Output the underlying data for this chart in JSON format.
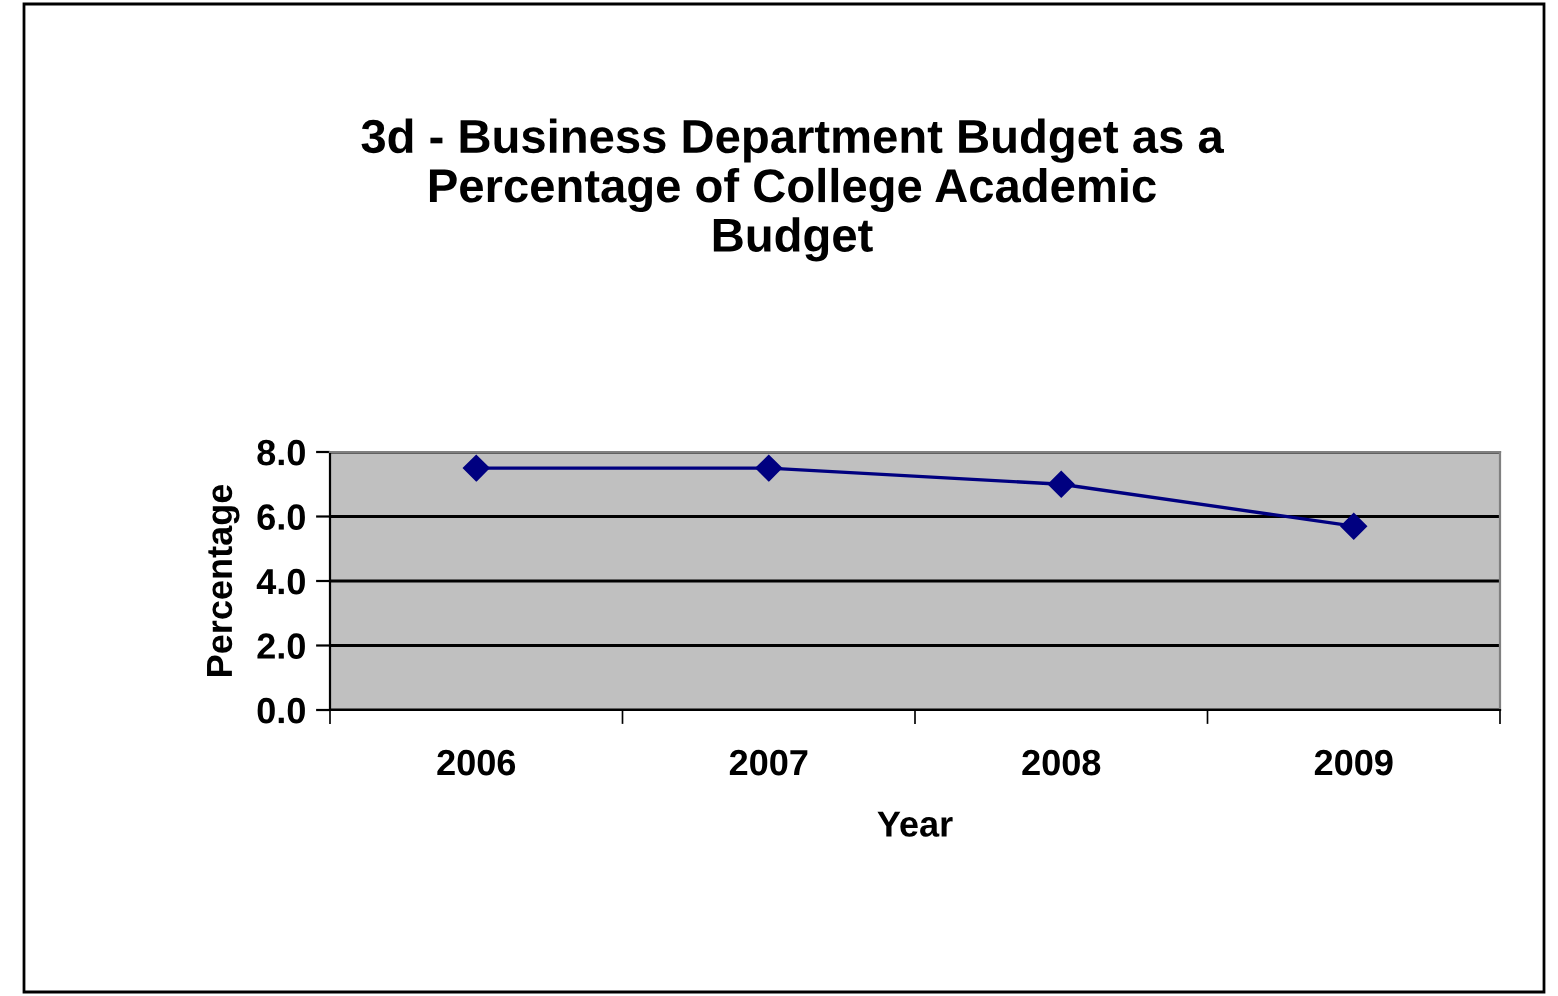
{
  "chart_data": {
    "type": "line",
    "title": "3d - Business Department Budget as a\nPercentage of College Academic\nBudget",
    "xlabel": "Year",
    "ylabel": "Percentage",
    "categories": [
      "2006",
      "2007",
      "2008",
      "2009"
    ],
    "series": [
      {
        "color": "#000080",
        "values": [
          7.5,
          7.5,
          7.0,
          5.7
        ]
      }
    ],
    "ylim": [
      0,
      8
    ],
    "yticks": [
      {
        "value": 0,
        "label": "0.0"
      },
      {
        "value": 2,
        "label": "2.0"
      },
      {
        "value": 4,
        "label": "4.0"
      },
      {
        "value": 6,
        "label": "6.0"
      },
      {
        "value": 8,
        "label": "8.0"
      }
    ],
    "grid": "y",
    "marker": "diamond",
    "line_style": "solid",
    "legend": false
  }
}
